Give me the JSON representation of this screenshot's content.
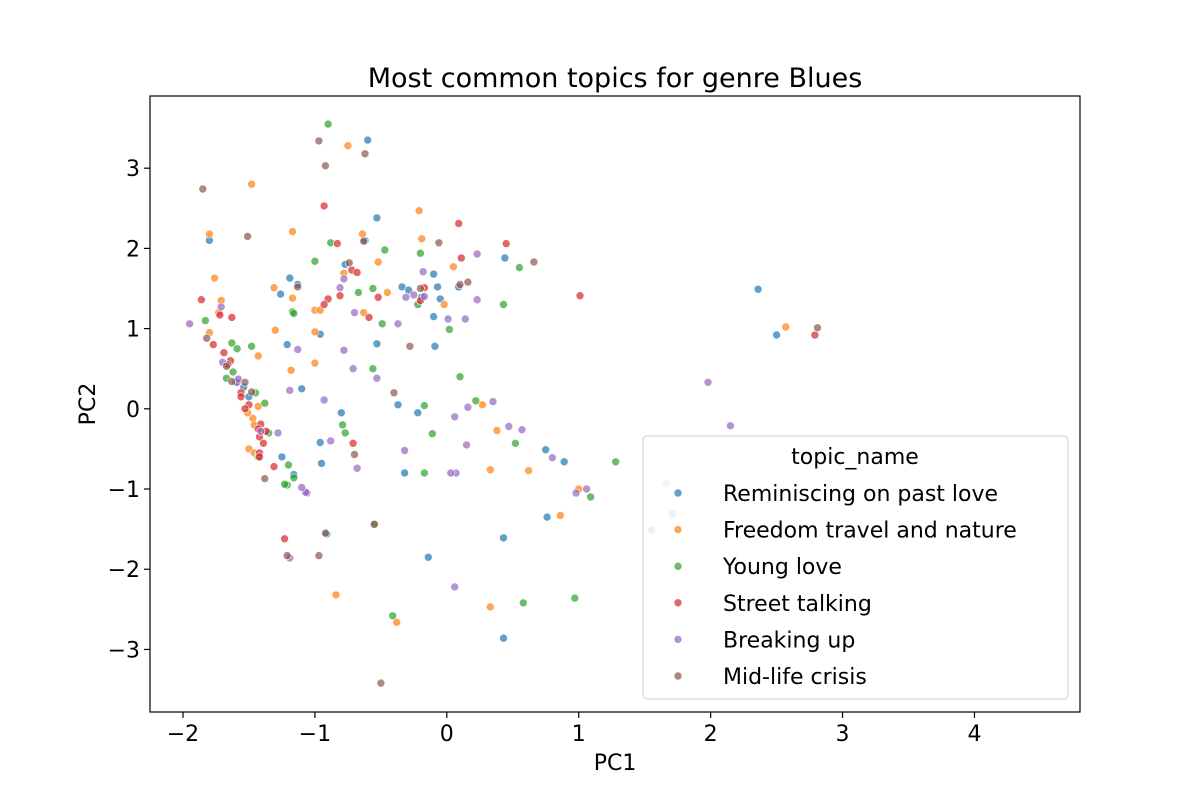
{
  "chart_data": {
    "type": "scatter",
    "title": "Most common topics for genre Blues",
    "xlabel": "PC1",
    "ylabel": "PC2",
    "xlim": [
      -2.25,
      4.8
    ],
    "ylim": [
      -3.78,
      3.9
    ],
    "xticks": [
      -2,
      -1,
      0,
      1,
      2,
      3,
      4
    ],
    "yticks": [
      -3,
      -2,
      -1,
      0,
      1,
      2,
      3
    ],
    "xtick_labels": [
      "−2",
      "−1",
      "0",
      "1",
      "2",
      "3",
      "4"
    ],
    "ytick_labels": [
      "−3",
      "−2",
      "−1",
      "0",
      "1",
      "2",
      "3"
    ],
    "grid": false,
    "legend": {
      "title": "topic_name",
      "placement": "lower-right"
    },
    "series": [
      {
        "name": "Reminiscing on past love",
        "color": "#1f77b4",
        "points": [
          [
            -1.8,
            2.1
          ],
          [
            -0.6,
            3.35
          ],
          [
            -0.53,
            2.38
          ],
          [
            -1.19,
            1.63
          ],
          [
            -1.13,
            1.55
          ],
          [
            -1.26,
            1.43
          ],
          [
            -0.96,
            0.93
          ],
          [
            -1.21,
            0.8
          ],
          [
            -1.1,
            0.25
          ],
          [
            -0.8,
            -0.05
          ],
          [
            -0.96,
            -0.42
          ],
          [
            -0.95,
            -0.68
          ],
          [
            -1.25,
            -0.6
          ],
          [
            -1.16,
            -0.82
          ],
          [
            -0.91,
            -1.56
          ],
          [
            -0.53,
            0.81
          ],
          [
            -0.77,
            1.8
          ],
          [
            -0.62,
            2.1
          ],
          [
            -0.34,
            1.52
          ],
          [
            -0.29,
            1.48
          ],
          [
            -0.19,
            1.39
          ],
          [
            -0.1,
            1.68
          ],
          [
            -0.07,
            1.52
          ],
          [
            -0.05,
            1.37
          ],
          [
            -0.1,
            1.15
          ],
          [
            -0.09,
            0.78
          ],
          [
            0.09,
            1.52
          ],
          [
            0.44,
            1.88
          ],
          [
            -0.37,
            0.05
          ],
          [
            -0.32,
            -0.8
          ],
          [
            -0.22,
            -0.05
          ],
          [
            -0.14,
            -1.85
          ],
          [
            2.36,
            1.49
          ],
          [
            2.5,
            0.92
          ],
          [
            0.43,
            -1.61
          ],
          [
            0.43,
            -2.86
          ],
          [
            0.75,
            -0.51
          ],
          [
            0.76,
            -1.35
          ],
          [
            0.89,
            -0.66
          ],
          [
            1.55,
            -1.51
          ],
          [
            1.71,
            -1.31
          ],
          [
            -1.5,
            0.15
          ],
          [
            -1.54,
            0.27
          ],
          [
            -1.6,
            0.33
          ]
        ]
      },
      {
        "name": "Freedom travel and nature",
        "color": "#ff7f0e",
        "points": [
          [
            -1.8,
            2.18
          ],
          [
            -1.48,
            2.8
          ],
          [
            -0.75,
            3.28
          ],
          [
            -1.17,
            2.21
          ],
          [
            -1.76,
            1.63
          ],
          [
            -1.71,
            1.35
          ],
          [
            -1.73,
            1.2
          ],
          [
            -1.8,
            0.95
          ],
          [
            -1.31,
            1.51
          ],
          [
            -1.17,
            1.38
          ],
          [
            -1.0,
            1.23
          ],
          [
            -0.96,
            1.23
          ],
          [
            -1.3,
            0.98
          ],
          [
            -1.0,
            0.96
          ],
          [
            -1.43,
            0.66
          ],
          [
            -1.0,
            0.57
          ],
          [
            -1.18,
            0.48
          ],
          [
            -1.47,
            -0.12
          ],
          [
            -1.46,
            -0.2
          ],
          [
            -1.5,
            -0.5
          ],
          [
            -1.46,
            -0.55
          ],
          [
            -1.51,
            -0.05
          ],
          [
            -0.78,
            1.69
          ],
          [
            -0.64,
            2.18
          ],
          [
            -0.52,
            1.83
          ],
          [
            -0.45,
            1.45
          ],
          [
            -0.63,
            1.2
          ],
          [
            -0.21,
            2.47
          ],
          [
            -0.19,
            2.12
          ],
          [
            -0.02,
            1.3
          ],
          [
            0.05,
            1.77
          ],
          [
            0.27,
            0.05
          ],
          [
            0.38,
            -0.27
          ],
          [
            0.33,
            -0.76
          ],
          [
            0.33,
            -2.47
          ],
          [
            0.62,
            -0.77
          ],
          [
            0.86,
            -1.33
          ],
          [
            1.0,
            -1.0
          ],
          [
            1.66,
            -0.93
          ],
          [
            2.57,
            1.02
          ],
          [
            -0.84,
            -2.32
          ],
          [
            -0.38,
            -2.66
          ],
          [
            -1.43,
            0.03
          ]
        ]
      },
      {
        "name": "Young love",
        "color": "#2ca02c",
        "points": [
          [
            -0.9,
            3.55
          ],
          [
            -1.83,
            1.1
          ],
          [
            -1.59,
            0.75
          ],
          [
            -1.63,
            0.82
          ],
          [
            -1.48,
            0.78
          ],
          [
            -1.67,
            0.38
          ],
          [
            -1.62,
            0.46
          ],
          [
            -1.45,
            0.2
          ],
          [
            -1.38,
            0.07
          ],
          [
            -1.35,
            -0.3
          ],
          [
            -1.43,
            -0.6
          ],
          [
            -1.2,
            -0.7
          ],
          [
            -1.21,
            -0.95
          ],
          [
            -1.23,
            -0.94
          ],
          [
            -1.16,
            -0.86
          ],
          [
            -1.0,
            1.84
          ],
          [
            -0.88,
            2.07
          ],
          [
            -1.17,
            1.21
          ],
          [
            -1.16,
            1.19
          ],
          [
            -0.79,
            -0.2
          ],
          [
            -0.77,
            -0.3
          ],
          [
            -0.47,
            1.98
          ],
          [
            -0.67,
            1.45
          ],
          [
            -0.56,
            1.5
          ],
          [
            -0.49,
            1.06
          ],
          [
            -0.56,
            0.5
          ],
          [
            -0.2,
            1.94
          ],
          [
            -0.22,
            1.3
          ],
          [
            -0.17,
            0.04
          ],
          [
            -0.17,
            -0.8
          ],
          [
            -0.11,
            -0.31
          ],
          [
            0.02,
            0.99
          ],
          [
            0.1,
            0.4
          ],
          [
            0.22,
            0.1
          ],
          [
            0.43,
            1.3
          ],
          [
            0.55,
            1.76
          ],
          [
            0.52,
            -0.43
          ],
          [
            1.28,
            -0.66
          ],
          [
            1.09,
            -1.1
          ],
          [
            0.58,
            -2.42
          ],
          [
            0.97,
            -2.36
          ],
          [
            -0.55,
            -1.44
          ],
          [
            -0.41,
            -2.58
          ]
        ]
      },
      {
        "name": "Street talking",
        "color": "#d62728",
        "points": [
          [
            -0.93,
            2.53
          ],
          [
            -1.86,
            1.36
          ],
          [
            -1.72,
            1.17
          ],
          [
            -1.63,
            1.14
          ],
          [
            -1.77,
            0.8
          ],
          [
            -1.69,
            0.7
          ],
          [
            -1.64,
            0.6
          ],
          [
            -1.66,
            0.55
          ],
          [
            -1.56,
            0.2
          ],
          [
            -1.56,
            0.15
          ],
          [
            -1.5,
            0.05
          ],
          [
            -1.53,
            0.0
          ],
          [
            -1.41,
            -0.19
          ],
          [
            -1.43,
            -0.25
          ],
          [
            -1.37,
            -0.28
          ],
          [
            -1.42,
            -0.35
          ],
          [
            -1.39,
            -0.43
          ],
          [
            -1.42,
            -0.55
          ],
          [
            -1.42,
            -0.6
          ],
          [
            -1.31,
            -0.72
          ],
          [
            -1.23,
            -1.62
          ],
          [
            -0.83,
            2.06
          ],
          [
            -0.72,
            1.73
          ],
          [
            -0.68,
            1.7
          ],
          [
            -0.9,
            1.37
          ],
          [
            -0.81,
            1.41
          ],
          [
            -0.59,
            1.14
          ],
          [
            -0.52,
            1.39
          ],
          [
            -0.71,
            -0.43
          ],
          [
            0.09,
            2.31
          ],
          [
            -0.17,
            1.51
          ],
          [
            0.11,
            1.88
          ],
          [
            0.45,
            2.06
          ],
          [
            -0.2,
            1.35
          ],
          [
            1.01,
            1.41
          ],
          [
            2.79,
            0.92
          ],
          [
            -0.93,
            1.3
          ]
        ]
      },
      {
        "name": "Breaking up",
        "color": "#9467bd",
        "points": [
          [
            -1.95,
            1.06
          ],
          [
            -1.71,
            1.27
          ],
          [
            -1.7,
            0.58
          ],
          [
            -1.41,
            -0.28
          ],
          [
            -1.28,
            -0.3
          ],
          [
            -1.06,
            -1.05
          ],
          [
            -1.07,
            -1.04
          ],
          [
            -1.19,
            -1.86
          ],
          [
            -1.1,
            -0.98
          ],
          [
            -1.19,
            0.23
          ],
          [
            -1.13,
            0.74
          ],
          [
            -0.93,
            0.11
          ],
          [
            -0.81,
            1.51
          ],
          [
            -0.78,
            1.62
          ],
          [
            -0.7,
            1.2
          ],
          [
            -0.78,
            0.73
          ],
          [
            -0.71,
            0.5
          ],
          [
            -0.53,
            0.38
          ],
          [
            -0.68,
            -0.74
          ],
          [
            -0.88,
            -0.4
          ],
          [
            -0.32,
            -0.52
          ],
          [
            -0.31,
            1.39
          ],
          [
            -0.37,
            1.06
          ],
          [
            -0.25,
            1.42
          ],
          [
            -0.17,
            1.4
          ],
          [
            -0.18,
            1.71
          ],
          [
            0.01,
            1.12
          ],
          [
            0.14,
            1.12
          ],
          [
            0.23,
            1.93
          ],
          [
            0.23,
            1.36
          ],
          [
            0.06,
            -0.1
          ],
          [
            0.16,
            0.02
          ],
          [
            0.35,
            0.09
          ],
          [
            0.47,
            -0.22
          ],
          [
            0.57,
            -0.26
          ],
          [
            0.15,
            -0.45
          ],
          [
            0.07,
            -0.8
          ],
          [
            0.03,
            -0.8
          ],
          [
            0.06,
            -2.22
          ],
          [
            0.8,
            -0.61
          ],
          [
            0.98,
            -1.05
          ],
          [
            1.06,
            -1.0
          ],
          [
            1.98,
            0.33
          ],
          [
            2.15,
            -0.21
          ],
          [
            -1.59,
            0.33
          ],
          [
            -1.58,
            0.37
          ]
        ]
      },
      {
        "name": "Mid-life crisis",
        "color": "#8c564b",
        "points": [
          [
            -1.85,
            2.74
          ],
          [
            -0.97,
            3.34
          ],
          [
            -0.92,
            3.03
          ],
          [
            -0.62,
            3.18
          ],
          [
            -1.51,
            2.15
          ],
          [
            -1.82,
            0.88
          ],
          [
            -1.67,
            0.53
          ],
          [
            -1.63,
            0.34
          ],
          [
            -1.53,
            0.33
          ],
          [
            -1.48,
            0.21
          ],
          [
            -1.38,
            -0.87
          ],
          [
            -1.21,
            -1.83
          ],
          [
            -0.97,
            -1.83
          ],
          [
            -0.92,
            -1.55
          ],
          [
            -1.13,
            1.52
          ],
          [
            -0.7,
            -0.57
          ],
          [
            -0.5,
            -3.42
          ],
          [
            -0.74,
            1.82
          ],
          [
            -0.63,
            2.09
          ],
          [
            -0.4,
            0.2
          ],
          [
            -0.28,
            0.78
          ],
          [
            -0.06,
            2.07
          ],
          [
            -0.2,
            1.5
          ],
          [
            0.1,
            1.55
          ],
          [
            0.16,
            1.58
          ],
          [
            0.66,
            1.83
          ],
          [
            2.81,
            1.01
          ],
          [
            -0.55,
            -1.44
          ]
        ]
      }
    ]
  }
}
